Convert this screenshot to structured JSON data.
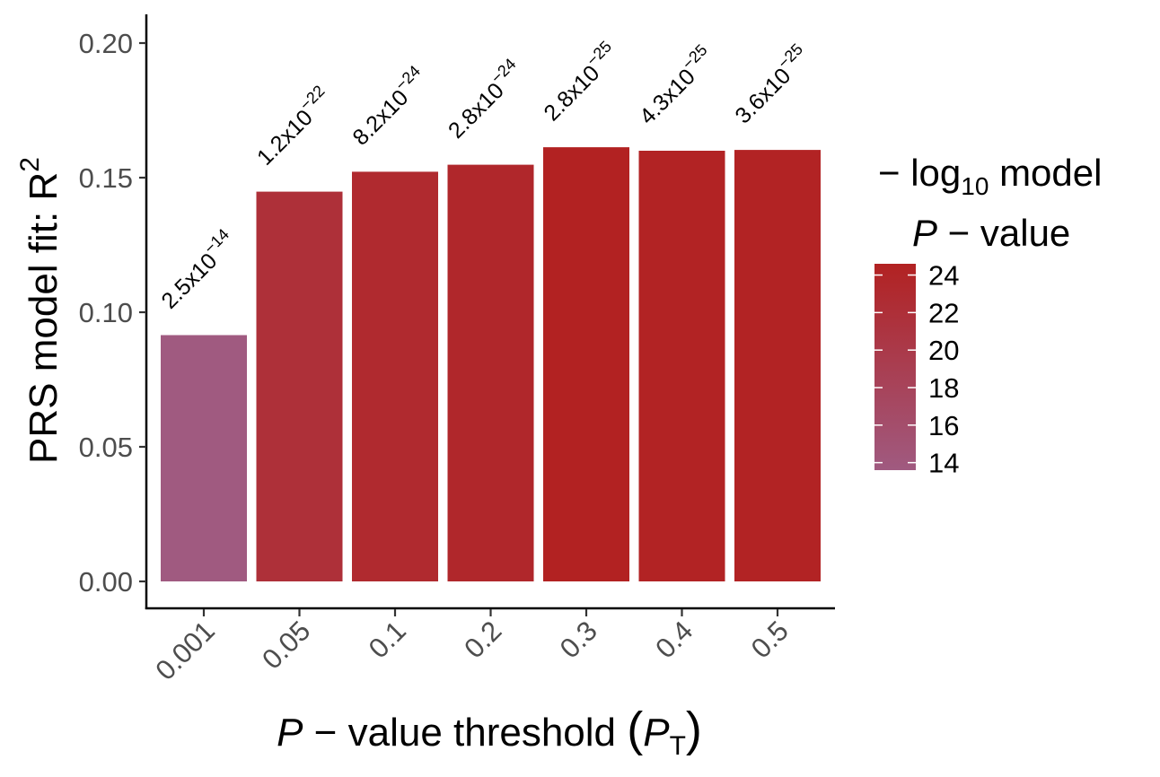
{
  "chart_data": {
    "type": "bar",
    "categories": [
      "0.001",
      "0.05",
      "0.1",
      "0.2",
      "0.3",
      "0.4",
      "0.5"
    ],
    "values": [
      0.0915,
      0.1448,
      0.1522,
      0.1548,
      0.1613,
      0.16,
      0.1603
    ],
    "pvalue_labels": [
      {
        "mantissa": "2.5",
        "exponent": "-14"
      },
      {
        "mantissa": "1.2",
        "exponent": "-22"
      },
      {
        "mantissa": "8.2",
        "exponent": "-24"
      },
      {
        "mantissa": "2.8",
        "exponent": "-24"
      },
      {
        "mantissa": "2.8",
        "exponent": "-25"
      },
      {
        "mantissa": "4.3",
        "exponent": "-25"
      },
      {
        "mantissa": "3.6",
        "exponent": "-25"
      }
    ],
    "neg_log10_p": [
      13.6,
      21.9,
      23.1,
      23.6,
      24.6,
      24.4,
      24.4
    ],
    "ylim": [
      -0.01,
      0.21
    ],
    "yticks": [
      "0.00",
      "0.05",
      "0.10",
      "0.15",
      "0.20"
    ],
    "ylabel": "PRS model fit:  R",
    "ylabel_sup": "2",
    "xlabel": {
      "p": "P",
      "rest": " − value threshold ",
      "open": "(",
      "sub_var": "P",
      "sub": "T",
      "close": ")"
    },
    "legend": {
      "title_line1_prefix": "− log",
      "title_line1_sub": "10",
      "title_line1_suffix": " model",
      "title_line2_p": "P",
      "title_line2_rest": " − value",
      "ticks": [
        "24",
        "22",
        "20",
        "18",
        "16",
        "14"
      ],
      "range": [
        13.6,
        24.6
      ],
      "color_low": "#a05a80",
      "color_high": "#b22222"
    },
    "grid": false
  }
}
